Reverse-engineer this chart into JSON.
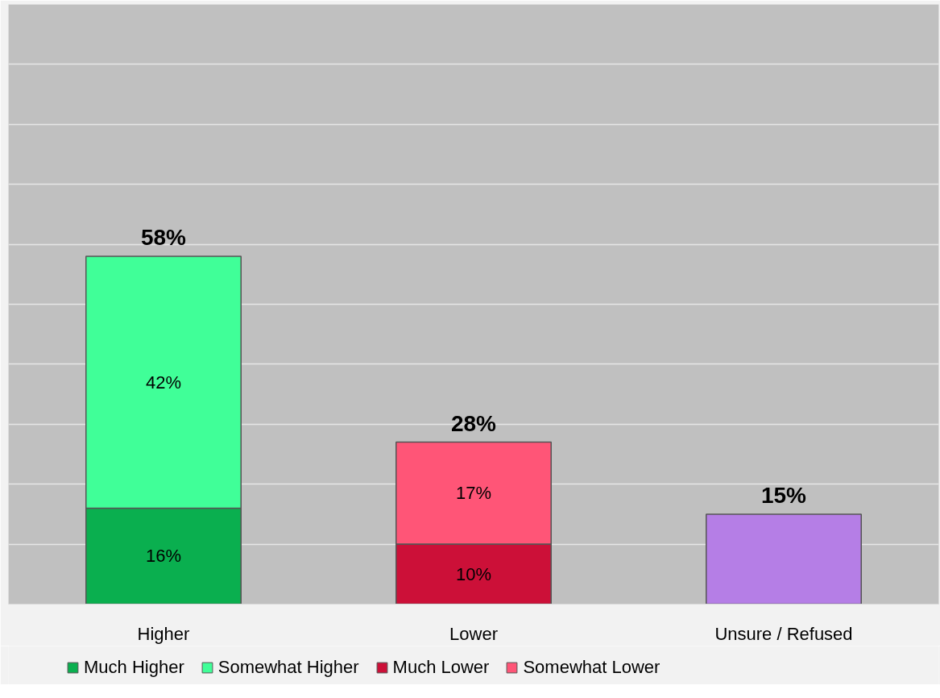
{
  "chart_data": {
    "type": "bar",
    "stacked": true,
    "categories": [
      "Higher",
      "Lower",
      "Unsure / Refused"
    ],
    "series": [
      {
        "name": "Much Higher",
        "color": "#0aaf4f",
        "values": [
          16,
          null,
          null
        ],
        "value_labels": [
          "16%",
          null,
          null
        ]
      },
      {
        "name": "Somewhat Higher",
        "color": "#40ff98",
        "values": [
          42,
          null,
          null
        ],
        "value_labels": [
          "42%",
          null,
          null
        ]
      },
      {
        "name": "Much Lower",
        "color": "#cc1038",
        "values": [
          null,
          10,
          null
        ],
        "value_labels": [
          null,
          "10%",
          null
        ]
      },
      {
        "name": "Somewhat Lower",
        "color": "#ff5577",
        "values": [
          null,
          17,
          null
        ],
        "value_labels": [
          null,
          "17%",
          null
        ]
      },
      {
        "color": "#b57ee6",
        "values": [
          null,
          null,
          15
        ]
      }
    ],
    "totals": [
      "58%",
      "28%",
      "15%"
    ],
    "ylim": [
      0,
      100
    ],
    "yticks": [
      {
        "value": 0,
        "label": null
      },
      {
        "value": 10,
        "label": null
      },
      {
        "value": 20,
        "label": null
      },
      {
        "value": 30,
        "label": null
      },
      {
        "value": 40,
        "label": null
      },
      {
        "value": 50,
        "label": null
      },
      {
        "value": 60,
        "label": null
      },
      {
        "value": 70,
        "label": null
      },
      {
        "value": 80,
        "label": null
      },
      {
        "value": 90,
        "label": null
      },
      {
        "value": 100,
        "label": null
      }
    ],
    "tick_labels": "x",
    "grid": "y",
    "legend": "bottom"
  }
}
